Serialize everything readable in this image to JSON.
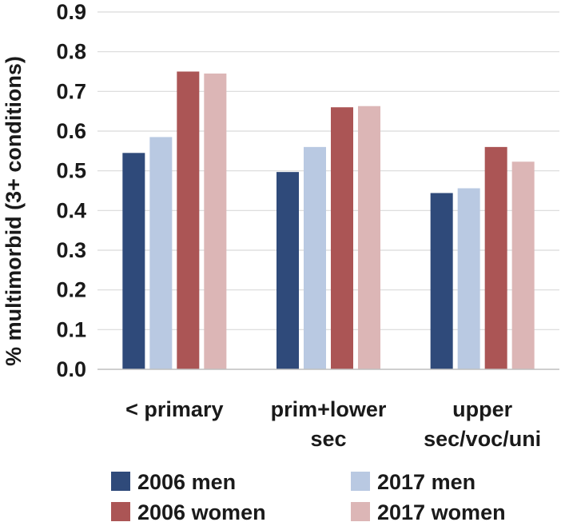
{
  "chart_data": {
    "type": "bar",
    "title": "",
    "xlabel": "",
    "ylabel": "% multimorbid (3+ conditions)",
    "ylim": [
      0,
      0.9
    ],
    "yticks": [
      "0.0",
      "0.1",
      "0.2",
      "0.3",
      "0.4",
      "0.5",
      "0.6",
      "0.7",
      "0.8",
      "0.9"
    ],
    "grid": true,
    "legend_position": "bottom",
    "categories": [
      {
        "lines": [
          "< primary"
        ]
      },
      {
        "lines": [
          "prim+lower",
          "sec"
        ]
      },
      {
        "lines": [
          "upper",
          "sec/voc/uni"
        ]
      }
    ],
    "series": [
      {
        "name": "2006 men",
        "color": "#2f4a7a",
        "values": [
          0.545,
          0.497,
          0.444
        ]
      },
      {
        "name": "2017 men",
        "color": "#b9c9e2",
        "values": [
          0.585,
          0.56,
          0.456
        ]
      },
      {
        "name": "2006 women",
        "color": "#ab5555",
        "values": [
          0.75,
          0.66,
          0.56
        ]
      },
      {
        "name": "2017 women",
        "color": "#dcb6b6",
        "values": [
          0.745,
          0.663,
          0.523
        ]
      }
    ],
    "grid_color": "#d9d9d9",
    "axis_color": "#bfbfbf"
  }
}
